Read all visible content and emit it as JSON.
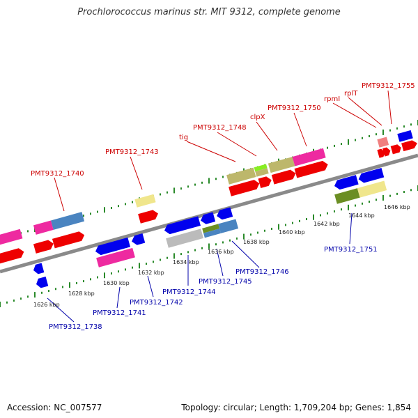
{
  "title": "Prochlorococcus marinus str. MIT 9312, complete genome",
  "footer": {
    "accession": "Accession: NC_007577",
    "summary": "Topology: circular; Length: 1,709,204 bp; Genes: 1,854"
  },
  "colors": {
    "backbone": "#8a8a8a",
    "track_ticks": "#2a8a2a",
    "top_label": "#cc0000",
    "bottom_label": "#0000aa",
    "blue": "#0000ee",
    "red": "#ee0000",
    "magenta": "#ee2aa0",
    "steelblue": "#4a84c0",
    "khaki": "#bdb76b",
    "lightkhaki": "#f0e68c",
    "olive": "#6b8e23",
    "lime": "#88ee22",
    "pink": "#f08080",
    "gray": "#bbbbbb"
  },
  "scale_labels": [
    "1626 kbp",
    "1628 kbp",
    "1630 kbp",
    "1632 kbp",
    "1634 kbp",
    "1636 kbp",
    "1638 kbp",
    "1640 kbp",
    "1642 kbp",
    "1644 kbp",
    "1646 kbp"
  ],
  "top_labels": [
    "PMT9312_1740",
    "PMT9312_1743",
    "tig",
    "PMT9312_1748",
    "clpX",
    "PMT9312_1750",
    "rpmI",
    "rplT",
    "PMT9312_1755"
  ],
  "bottom_labels": [
    "PMT9312_1738",
    "PMT9312_1741",
    "PMT9312_1742",
    "PMT9312_1744",
    "PMT9312_1745",
    "PMT9312_1746",
    "PMT9312_1751"
  ]
}
